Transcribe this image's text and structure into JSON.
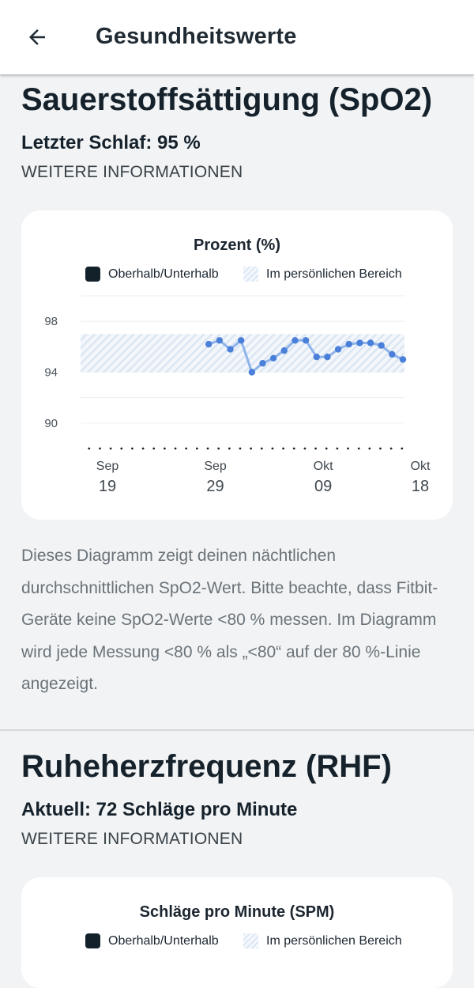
{
  "header": {
    "title": "Gesundheitswerte",
    "back_icon": "arrow-left-icon"
  },
  "spo2": {
    "title": "Sauerstoffsättigung (SpO2)",
    "subtitle": "Letzter Schlaf: 95 %",
    "more_link": "WEITERE INFORMATIONEN",
    "description": "Dieses Diagramm zeigt deinen nächtlichen durchschnittlichen SpO2-Wert. Bitte beachte, dass Fitbit-Geräte keine SpO2-Werte <80 % messen. Im Diagramm wird jede Messung <80 % als „<80“ auf der 80 %-Linie angezeigt.",
    "legend": {
      "outside": "Oberhalb/Unterhalb",
      "inside": "Im persönlichen Bereich"
    }
  },
  "rhr": {
    "title": "Ruheherzfrequenz (RHF)",
    "subtitle": "Aktuell: 72 Schläge pro Minute",
    "more_link": "WEITERE INFORMATIONEN",
    "chart_title": "Schläge pro Minute (SPM)",
    "legend": {
      "outside": "Oberhalb/Unterhalb",
      "inside": "Im persönlichen Bereich"
    }
  },
  "colors": {
    "accent_line": "#8fb3ea",
    "accent_point": "#4a80d9",
    "band_light": "#dbe7f4",
    "outside_marker": "#13212b"
  },
  "chart_data": [
    {
      "type": "line",
      "title": "Prozent (%)",
      "ylim": [
        88,
        100
      ],
      "yticks": [
        90,
        94,
        98
      ],
      "x_start": "Sep 19",
      "x_end": "Okt 18",
      "x_tick_labels": [
        {
          "month": "Sep",
          "day": "19",
          "day_index": 0
        },
        {
          "month": "Sep",
          "day": "29",
          "day_index": 10
        },
        {
          "month": "Okt",
          "day": "09",
          "day_index": 20
        },
        {
          "month": "Okt",
          "day": "18",
          "day_index": 29
        }
      ],
      "personal_range": [
        94,
        97
      ],
      "grid": true,
      "legend_position": "top",
      "series": [
        {
          "points": [
            {
              "day_index": 11,
              "y": 96.2
            },
            {
              "day_index": 12,
              "y": 96.5
            },
            {
              "day_index": 13,
              "y": 95.8
            },
            {
              "day_index": 14,
              "y": 96.5
            },
            {
              "day_index": 15,
              "y": 94.0
            },
            {
              "day_index": 16,
              "y": 94.7
            },
            {
              "day_index": 17,
              "y": 95.1
            },
            {
              "day_index": 18,
              "y": 95.7
            },
            {
              "day_index": 19,
              "y": 96.5
            },
            {
              "day_index": 20,
              "y": 96.5
            },
            {
              "day_index": 21,
              "y": 95.2
            },
            {
              "day_index": 22,
              "y": 95.2
            },
            {
              "day_index": 23,
              "y": 95.8
            },
            {
              "day_index": 24,
              "y": 96.2
            },
            {
              "day_index": 25,
              "y": 96.3
            },
            {
              "day_index": 26,
              "y": 96.3
            },
            {
              "day_index": 27,
              "y": 96.1
            },
            {
              "day_index": 28,
              "y": 95.4
            },
            {
              "day_index": 29,
              "y": 95.0
            }
          ]
        }
      ]
    }
  ]
}
